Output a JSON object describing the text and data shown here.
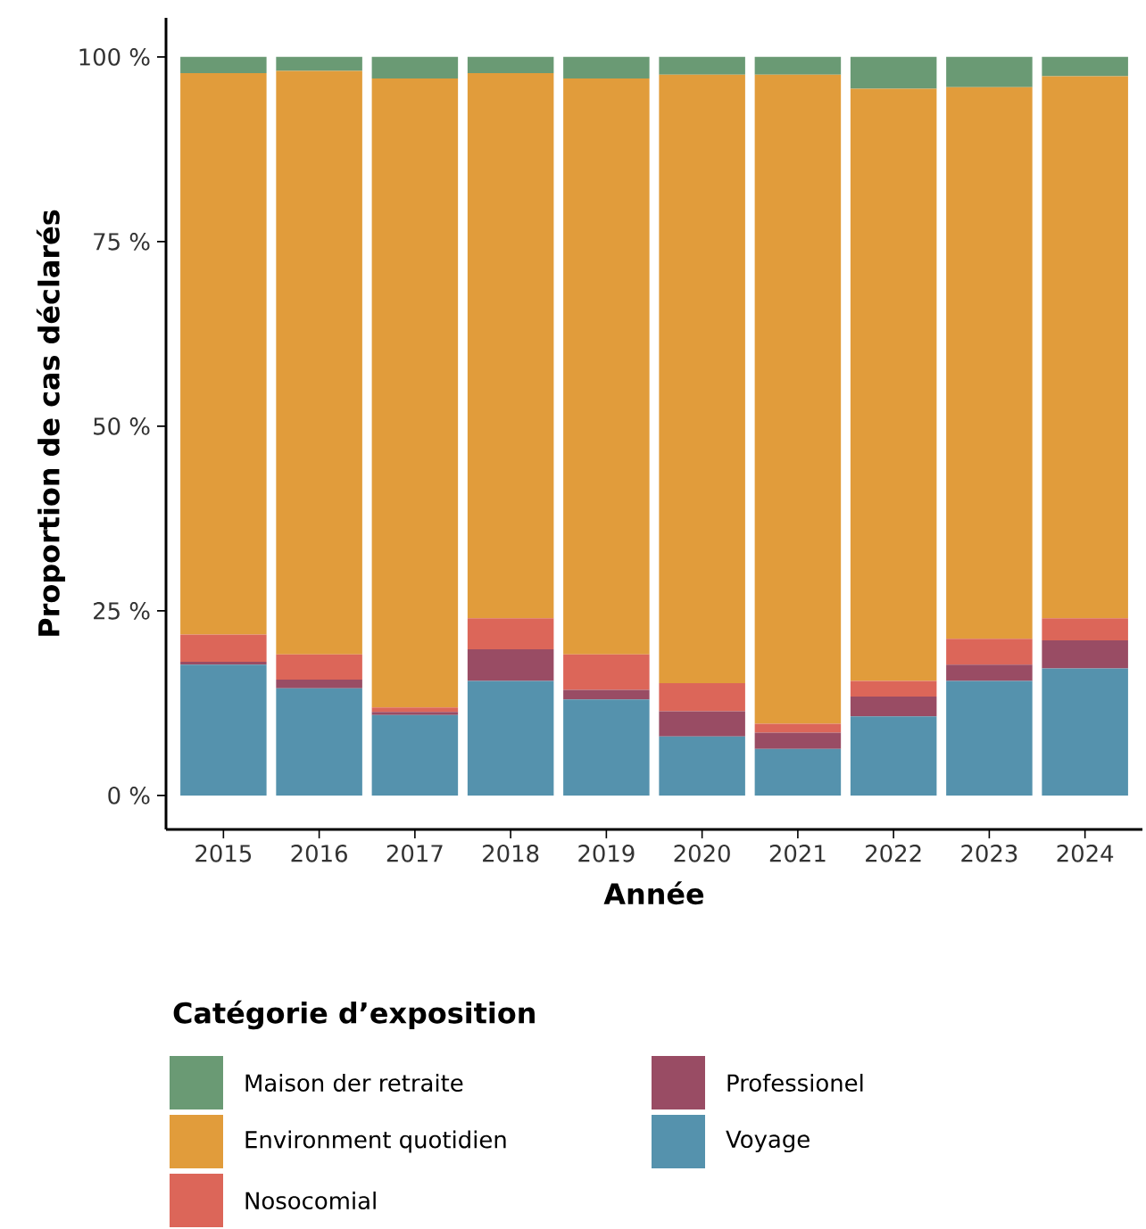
{
  "chart_data": {
    "type": "bar",
    "stacked": true,
    "xlabel": "Année",
    "ylabel": "Proportion de cas déclarés",
    "legend_title": "Catégorie d’exposition",
    "legend": "bottom",
    "categories": [
      "2015",
      "2016",
      "2017",
      "2018",
      "2019",
      "2020",
      "2021",
      "2022",
      "2023",
      "2024"
    ],
    "series": [
      {
        "name": "Voyage",
        "color": "#5592ad",
        "values": [
          17.7,
          14.5,
          10.9,
          15.5,
          13.0,
          8.0,
          6.3,
          10.7,
          15.5,
          17.2
        ]
      },
      {
        "name": "Professionel",
        "color": "#994c64",
        "values": [
          0.4,
          1.2,
          0.4,
          4.3,
          1.3,
          3.4,
          2.2,
          2.7,
          2.2,
          3.8
        ]
      },
      {
        "name": "Nosocomial",
        "color": "#dc6659",
        "values": [
          3.7,
          3.4,
          0.6,
          4.2,
          4.8,
          3.8,
          1.2,
          2.1,
          3.5,
          3.0
        ]
      },
      {
        "name": "Environment quotidien",
        "color": "#e19c3b",
        "values": [
          76.0,
          79.0,
          85.2,
          73.8,
          78.0,
          82.4,
          87.9,
          80.2,
          74.7,
          73.4
        ]
      },
      {
        "name": "Maison der retraite",
        "color": "#6a9a74",
        "values": [
          2.2,
          1.9,
          2.9,
          2.2,
          2.9,
          2.4,
          2.4,
          4.3,
          4.1,
          2.6
        ]
      }
    ],
    "ylim": [
      -4.6,
      105.3
    ],
    "yticks": [
      {
        "value": 0,
        "label": "0 %"
      },
      {
        "value": 25,
        "label": "25 %"
      },
      {
        "value": 50,
        "label": "50 %"
      },
      {
        "value": 75,
        "label": "75 %"
      },
      {
        "value": 100,
        "label": "100 %"
      }
    ]
  }
}
